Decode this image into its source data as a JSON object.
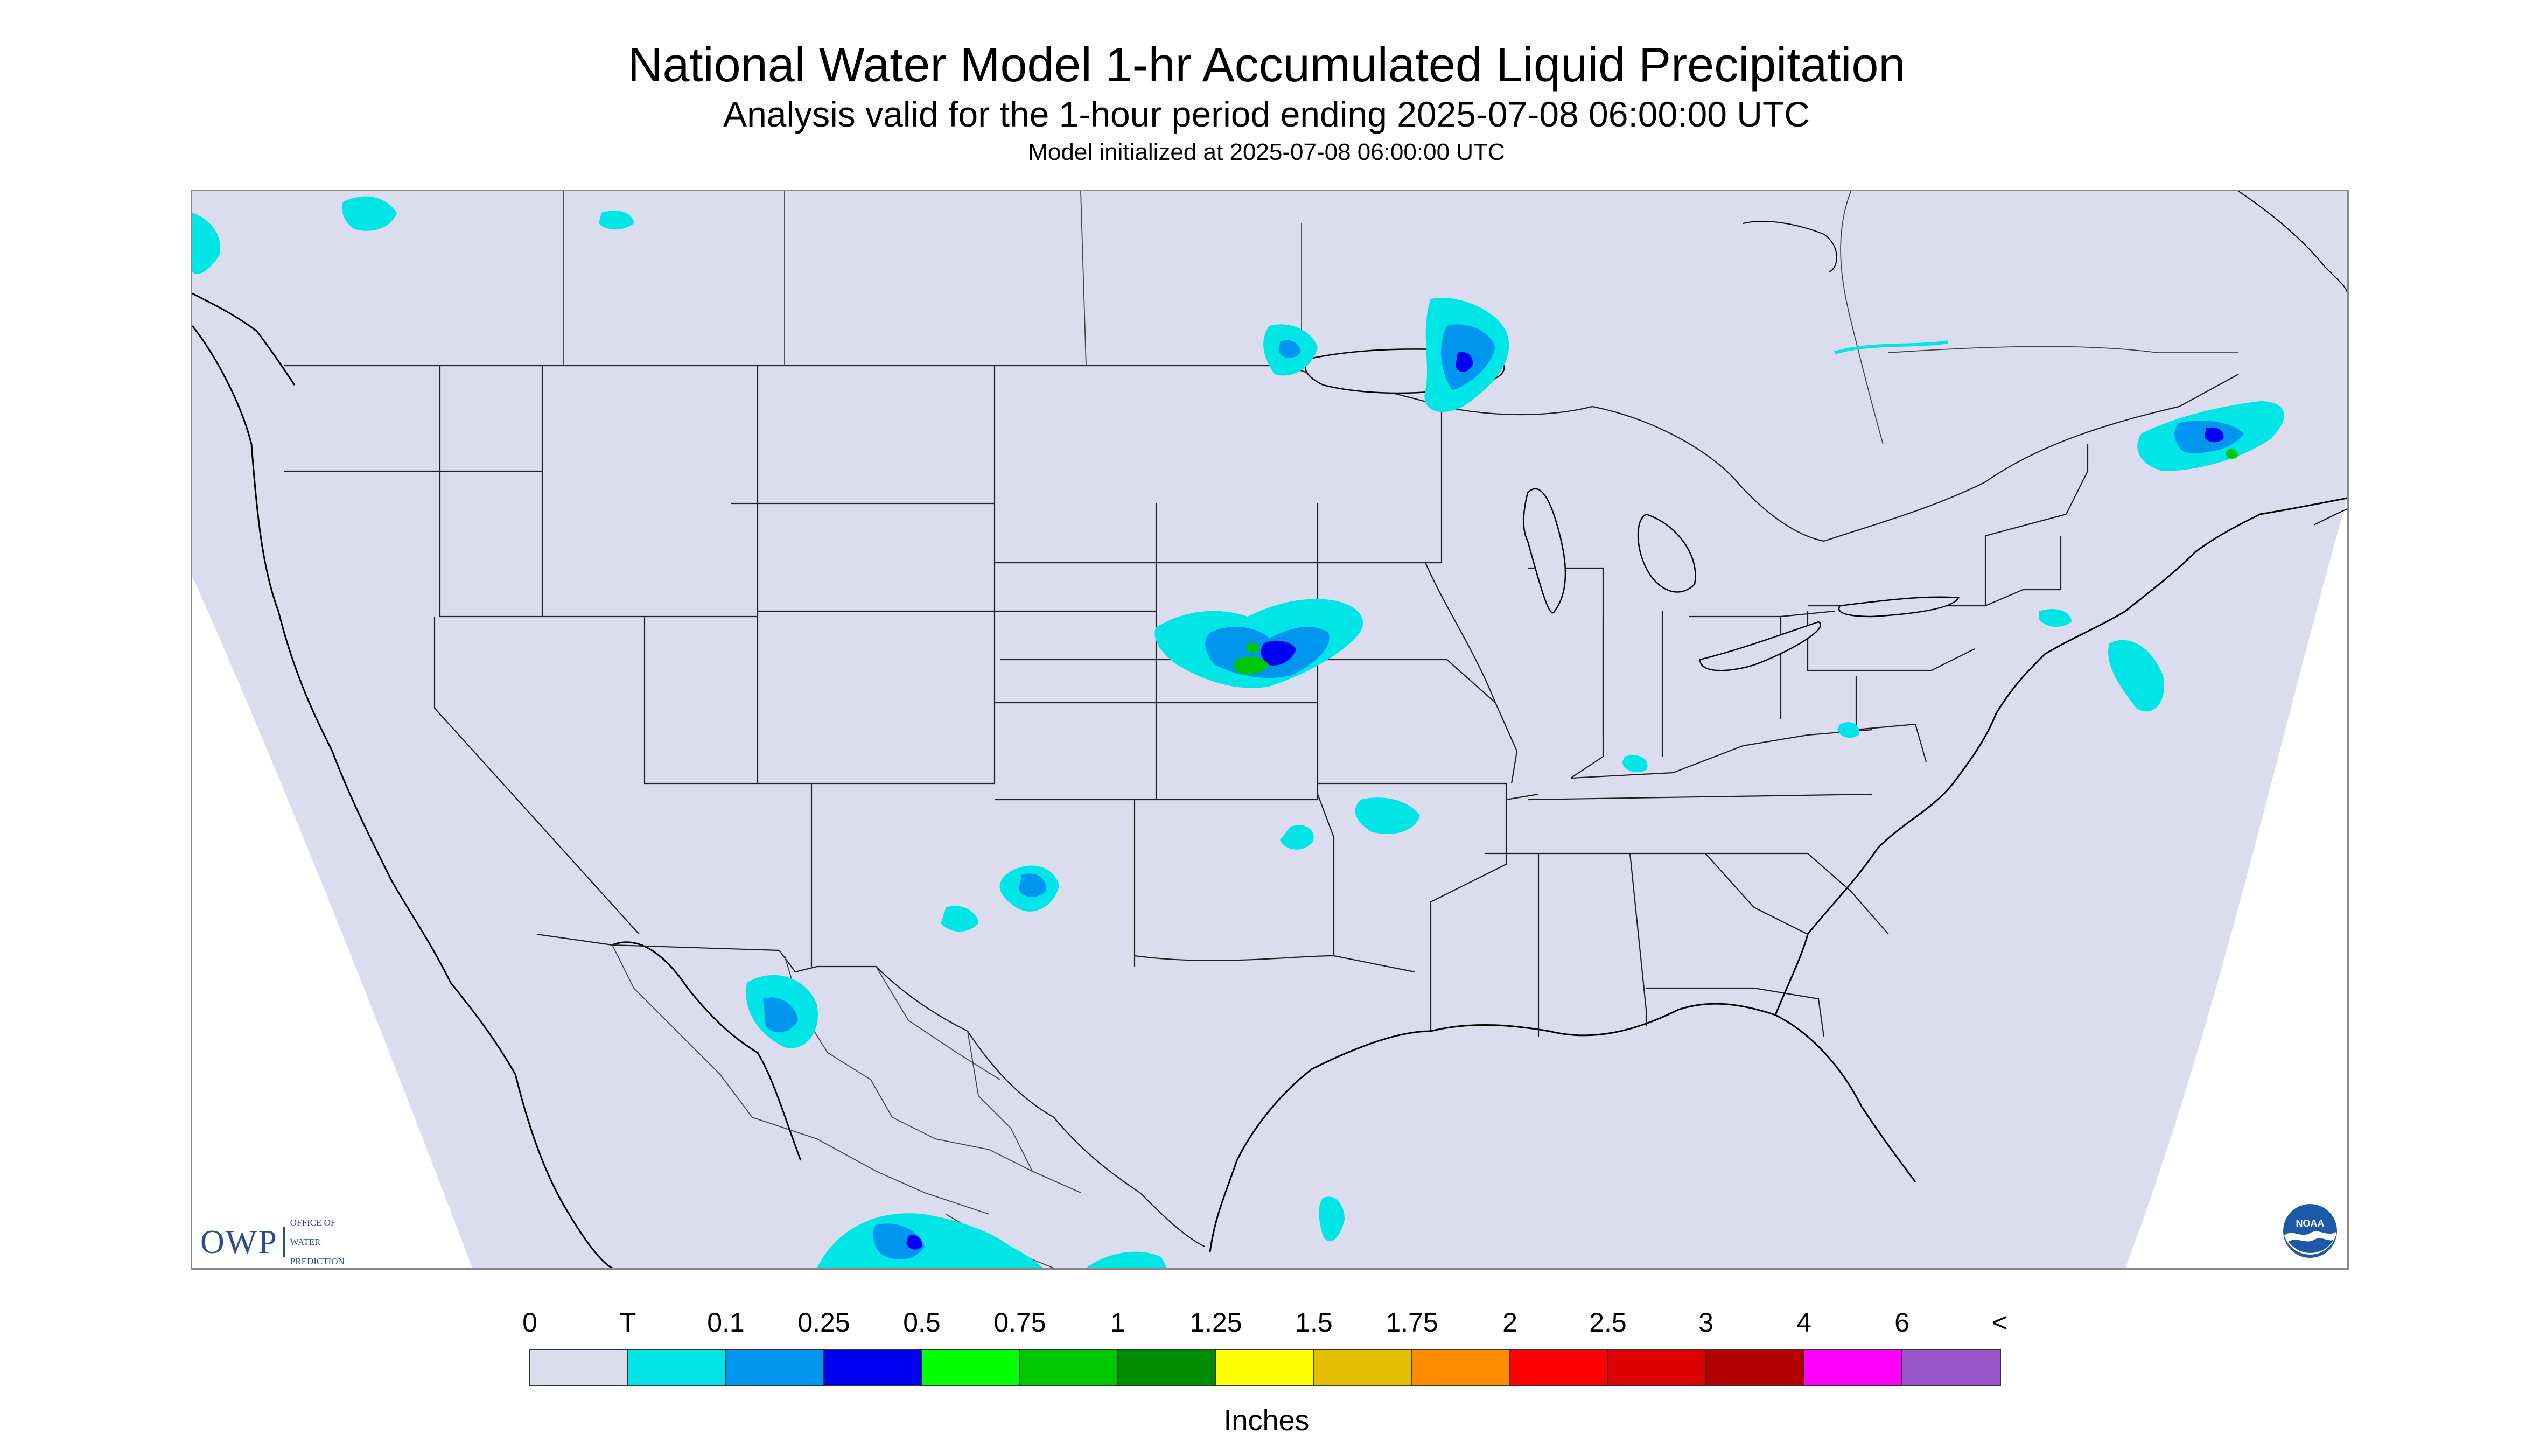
{
  "header": {
    "title": "National Water Model 1-hr Accumulated Liquid Precipitation",
    "subtitle": "Analysis valid for the 1-hour period ending 2025-07-08 06:00:00 UTC",
    "init_line": "Model initialized at 2025-07-08 06:00:00 UTC"
  },
  "map": {
    "region": "Contiguous United States",
    "projection_fill_color": "#dcdcef",
    "outside_domain_color": "#ffffff",
    "boundary_color": "#000000"
  },
  "logos": {
    "owp": {
      "letters": "OWP",
      "line1": "OFFICE OF",
      "line2": "WATER",
      "line3": "PREDICTION"
    },
    "noaa": {
      "text": "NOAA"
    }
  },
  "legend": {
    "labels": [
      "0",
      "T",
      "0.1",
      "0.25",
      "0.5",
      "0.75",
      "1",
      "1.25",
      "1.5",
      "1.75",
      "2",
      "2.5",
      "3",
      "4",
      "6",
      "<"
    ],
    "colors": [
      "#dcdcef",
      "#00e5e5",
      "#0096f0",
      "#0000f0",
      "#00ff00",
      "#00c800",
      "#008c00",
      "#ffff00",
      "#e5c000",
      "#ff8c00",
      "#ff0000",
      "#dc0000",
      "#b40000",
      "#ff00ff",
      "#9955c8"
    ],
    "unit": "Inches"
  }
}
